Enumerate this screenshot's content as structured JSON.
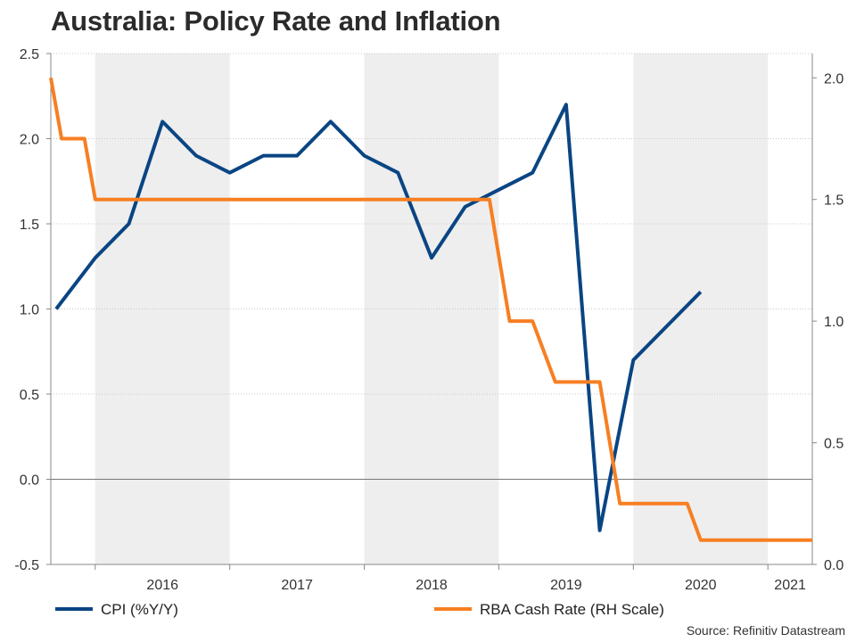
{
  "title": "Australia: Policy Rate and Inflation",
  "source": "Source: Refinitiv Datastream",
  "colors": {
    "cpi": "#0a4583",
    "cash_rate": "#f77f22",
    "shade": "#eeeeee",
    "axis": "#888888",
    "grid": "#c8c8c8"
  },
  "chart_data": {
    "type": "line",
    "title": "Australia: Policy Rate and Inflation",
    "xlabel": "",
    "ylabel": "",
    "x_axis": {
      "range": [
        2015.67,
        2021.33
      ],
      "tick_labels": [
        "2016",
        "2017",
        "2018",
        "2019",
        "2020",
        "2021"
      ],
      "shaded_years": [
        "2016",
        "2018",
        "2020"
      ]
    },
    "y_left": {
      "range": [
        -0.5,
        2.5
      ],
      "ticks": [
        -0.5,
        0.0,
        0.5,
        1.0,
        1.5,
        2.0,
        2.5
      ],
      "tick_labels": [
        "-0.5",
        "0.0",
        "0.5",
        "1.0",
        "1.5",
        "2.0",
        "2.5"
      ]
    },
    "y_right": {
      "range": [
        0.0,
        2.1
      ],
      "ticks": [
        0.0,
        0.5,
        1.0,
        1.5,
        2.0
      ],
      "tick_labels": [
        "0.0",
        "0.5",
        "1.0",
        "1.5",
        "2.0"
      ]
    },
    "grid": true,
    "legend_position": "bottom",
    "series": [
      {
        "name": "CPI (%Y/Y)",
        "axis": "left",
        "color": "#0a4583",
        "x": [
          2015.71,
          2016.0,
          2016.25,
          2016.5,
          2016.75,
          2017.0,
          2017.25,
          2017.5,
          2017.75,
          2018.0,
          2018.25,
          2018.5,
          2018.75,
          2019.0,
          2019.25,
          2019.5,
          2019.75,
          2020.0,
          2020.25,
          2020.5,
          2020.75,
          2021.0
        ],
        "values": [
          1.0,
          1.3,
          1.5,
          2.1,
          1.9,
          1.8,
          1.9,
          1.9,
          2.1,
          1.9,
          1.8,
          1.3,
          1.6,
          1.7,
          1.8,
          2.2,
          -0.3,
          0.7,
          0.9,
          1.1,
          null,
          null
        ]
      },
      {
        "name": "RBA Cash Rate (RH Scale)",
        "axis": "right",
        "color": "#f77f22",
        "x": [
          2015.67,
          2015.75,
          2015.92,
          2016.0,
          2018.93,
          2019.08,
          2019.25,
          2019.42,
          2019.75,
          2019.9,
          2020.4,
          2020.5,
          2021.33
        ],
        "values": [
          2.0,
          1.75,
          1.75,
          1.5,
          1.5,
          1.0,
          1.0,
          0.75,
          0.75,
          0.25,
          0.25,
          0.1,
          0.1
        ]
      }
    ]
  }
}
